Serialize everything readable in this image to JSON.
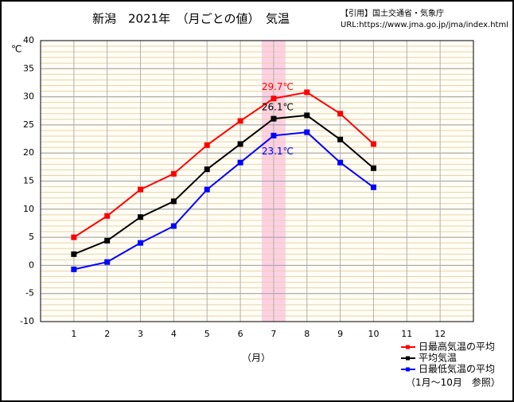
{
  "chart_data": {
    "type": "line",
    "title": "新潟　2021年　（月ごとの値）　気温",
    "source": "【引用】国土交通省・気象庁",
    "url": "URL:https://www.jma.go.jp/jma/index.html",
    "y_label": "℃",
    "x_label": "（月）",
    "note": "（1月～10月　参照）",
    "categories": [
      "1",
      "2",
      "3",
      "4",
      "5",
      "6",
      "7",
      "8",
      "9",
      "10",
      "11",
      "12"
    ],
    "highlight": "7",
    "series": [
      {
        "name": "日最高気温の平均",
        "color": "#ff0000",
        "values": [
          5.0,
          8.8,
          13.5,
          16.3,
          21.4,
          25.7,
          29.7,
          30.8,
          27.0,
          21.6,
          null,
          null
        ],
        "value_labels": [
          null,
          null,
          null,
          null,
          null,
          null,
          "29.7℃",
          null,
          null,
          null,
          null,
          null
        ]
      },
      {
        "name": "平均気温",
        "color": "#000000",
        "values": [
          2.0,
          4.4,
          8.6,
          11.4,
          17.1,
          21.6,
          26.1,
          26.7,
          22.4,
          17.3,
          null,
          null
        ],
        "value_labels": [
          null,
          null,
          null,
          null,
          null,
          null,
          "26.1℃",
          null,
          null,
          null,
          null,
          null
        ]
      },
      {
        "name": "日最低気温の平均",
        "color": "#0000ff",
        "values": [
          -0.7,
          0.6,
          4.0,
          7.0,
          13.5,
          18.3,
          23.1,
          23.7,
          18.3,
          13.9,
          null,
          null
        ],
        "value_labels": [
          null,
          null,
          null,
          null,
          null,
          null,
          "23.1℃",
          null,
          null,
          null,
          null,
          null
        ]
      }
    ],
    "ylim": [
      -10,
      40
    ],
    "yticks": [
      -10,
      -5,
      0,
      5,
      10,
      15,
      20,
      25,
      30,
      35,
      40
    ],
    "minor_grid_step": 1,
    "grid": true
  }
}
